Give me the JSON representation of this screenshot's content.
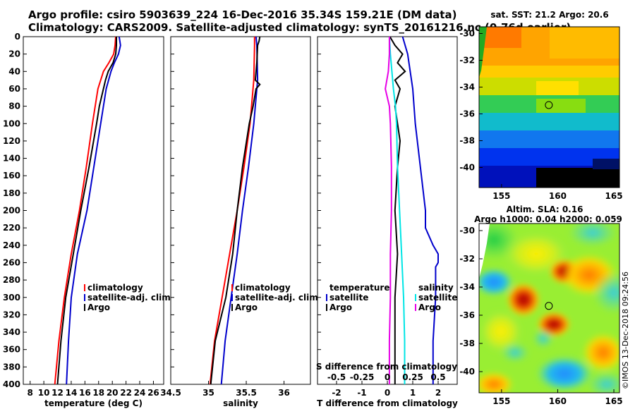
{
  "title_line1": "Argo profile: csiro 5903639_224 16-Dec-2016 35.34S 159.21E (DM data)",
  "title_line2": "Climatology: CARS2009. Satellite-adjusted climatology: synTS_20161216.nc (0.76d earlier)",
  "watermark": "©IMOS 13-Dec-2018 09:24:56",
  "colors": {
    "climatology": "#ff0000",
    "satellite": "#0000cc",
    "argo": "#000000",
    "s_satellite": "#00e5e5",
    "s_climatology": "#e600e6"
  },
  "chart_data": [
    {
      "type": "line",
      "name": "temperature",
      "xlabel": "temperature (deg C)",
      "ylabel": "",
      "xlim": [
        7,
        27.5
      ],
      "ylim": [
        0,
        400
      ],
      "xticks": [
        8,
        10,
        12,
        14,
        16,
        18,
        20,
        22,
        24,
        26
      ],
      "yticks": [
        0,
        20,
        40,
        60,
        80,
        100,
        120,
        140,
        160,
        180,
        200,
        220,
        240,
        260,
        280,
        300,
        320,
        340,
        360,
        380,
        400
      ],
      "legend": [
        "climatology",
        "satellite-adj. clim.",
        "Argo"
      ],
      "series": [
        {
          "name": "climatology",
          "color_key": "climatology",
          "depth": [
            0,
            10,
            20,
            30,
            40,
            60,
            80,
            100,
            150,
            200,
            250,
            300,
            350,
            400
          ],
          "values": [
            20.5,
            20.4,
            20.2,
            19.5,
            18.7,
            17.9,
            17.5,
            17.1,
            16.2,
            15.2,
            14.0,
            13.0,
            12.2,
            11.6
          ]
        },
        {
          "name": "satellite-adj. clim.",
          "color_key": "satellite",
          "depth": [
            0,
            10,
            20,
            30,
            40,
            60,
            80,
            100,
            150,
            200,
            250,
            300,
            350,
            400
          ],
          "values": [
            21.0,
            21.2,
            20.9,
            20.3,
            19.8,
            19.1,
            18.7,
            18.3,
            17.3,
            16.3,
            14.9,
            14.0,
            13.6,
            13.3
          ]
        },
        {
          "name": "Argo",
          "color_key": "argo",
          "depth": [
            0,
            10,
            20,
            30,
            40,
            50,
            60,
            80,
            100,
            150,
            200,
            250,
            300,
            350,
            400
          ],
          "values": [
            20.6,
            20.6,
            20.5,
            20.1,
            19.4,
            19.0,
            18.7,
            18.1,
            17.7,
            16.6,
            15.4,
            14.3,
            13.2,
            12.5,
            12.0
          ]
        }
      ]
    },
    {
      "type": "line",
      "name": "salinity",
      "xlabel": "salinity",
      "ylabel": "",
      "xlim": [
        34.5,
        36.35
      ],
      "ylim": [
        0,
        400
      ],
      "xticks": [
        34.5,
        35,
        35.5,
        36
      ],
      "legend": [
        "climatology",
        "satellite-adj. clim.",
        "Argo"
      ],
      "series": [
        {
          "name": "climatology",
          "color_key": "climatology",
          "depth": [
            0,
            10,
            50,
            100,
            150,
            200,
            250,
            300,
            350,
            400
          ],
          "values": [
            35.61,
            35.61,
            35.6,
            35.55,
            35.47,
            35.38,
            35.28,
            35.18,
            35.08,
            35.02
          ]
        },
        {
          "name": "satellite-adj. clim.",
          "color_key": "satellite",
          "depth": [
            0,
            10,
            50,
            100,
            150,
            200,
            250,
            300,
            350,
            400
          ],
          "values": [
            35.63,
            35.64,
            35.65,
            35.6,
            35.53,
            35.45,
            35.38,
            35.3,
            35.22,
            35.17
          ]
        },
        {
          "name": "Argo",
          "color_key": "argo",
          "depth": [
            0,
            5,
            10,
            30,
            50,
            55,
            60,
            80,
            100,
            150,
            200,
            250,
            300,
            350,
            400
          ],
          "values": [
            35.68,
            35.67,
            35.65,
            35.64,
            35.62,
            35.68,
            35.63,
            35.59,
            35.54,
            35.45,
            35.38,
            35.32,
            35.23,
            35.09,
            35.03
          ]
        }
      ]
    },
    {
      "type": "line",
      "name": "differences",
      "xlabel": "T difference from climatology",
      "xlabel_top": "S difference from climatology",
      "xlim": [
        -2.75,
        2.75
      ],
      "ylim": [
        0,
        400
      ],
      "xticks": [
        -2,
        -1,
        0,
        1,
        2
      ],
      "xticklabels": [
        "-2",
        "-1",
        "0",
        "1",
        "2"
      ],
      "top_ticks": [
        -0.5,
        -0.25,
        0,
        0.25,
        0.5
      ],
      "top_ticklabels": [
        "-0.5",
        "-0.25",
        "0",
        "0.25",
        "0.5"
      ],
      "legend_left_header": "temperature",
      "legend_right_header": "salinity",
      "legend_left": [
        "satellite",
        "Argo"
      ],
      "legend_right": [
        "satellite",
        "Argo"
      ],
      "series": [
        {
          "name": "T satellite",
          "color_key": "satellite",
          "unit": "T",
          "depth": [
            0,
            20,
            60,
            100,
            150,
            200,
            220,
            240,
            250,
            260,
            265,
            300,
            350,
            400
          ],
          "values": [
            0.6,
            0.8,
            1.0,
            1.1,
            1.3,
            1.5,
            1.5,
            1.8,
            2.0,
            2.0,
            1.9,
            1.9,
            1.8,
            1.8
          ]
        },
        {
          "name": "T Argo",
          "color_key": "argo",
          "unit": "T",
          "depth": [
            0,
            10,
            20,
            30,
            40,
            50,
            60,
            80,
            100,
            120,
            150,
            200,
            250,
            300,
            350,
            400
          ],
          "values": [
            0.1,
            0.3,
            0.6,
            0.4,
            0.7,
            0.3,
            0.5,
            0.3,
            0.4,
            0.5,
            0.4,
            0.3,
            0.4,
            0.3,
            0.3,
            0.3
          ]
        },
        {
          "name": "S satellite",
          "color_key": "s_satellite",
          "unit": "S",
          "depth": [
            0,
            20,
            60,
            80,
            100,
            150,
            200,
            250,
            300,
            350,
            400
          ],
          "values": [
            0.02,
            0.03,
            0.06,
            0.08,
            0.09,
            0.1,
            0.12,
            0.14,
            0.16,
            0.17,
            0.17
          ]
        },
        {
          "name": "S Argo",
          "color_key": "s_climatology",
          "unit": "S",
          "depth": [
            0,
            20,
            40,
            60,
            80,
            100,
            150,
            200,
            250,
            300,
            350,
            400
          ],
          "values": [
            0.02,
            0.02,
            0.01,
            -0.02,
            0.02,
            0.03,
            0.04,
            0.04,
            0.03,
            0.03,
            0.02,
            0.02
          ]
        }
      ]
    },
    {
      "type": "heatmap",
      "name": "sst_map",
      "title": "sat. SST: 21.2 Argo: 20.6",
      "xlim": [
        153,
        165.5
      ],
      "ylim": [
        -41.5,
        -29.5
      ],
      "xticks": [
        155,
        160,
        165
      ],
      "yticks": [
        -30,
        -32,
        -34,
        -36,
        -38,
        -40
      ],
      "marker": {
        "lon": 159.21,
        "lat": -35.34
      }
    },
    {
      "type": "heatmap",
      "name": "sla_map",
      "title_line1": "Altim. SLA: 0.16",
      "title_line2": "Argo h1000: 0.04 h2000: 0.059",
      "xlim": [
        153,
        165.5
      ],
      "ylim": [
        -41.5,
        -29.5
      ],
      "xticks": [
        155,
        160,
        165
      ],
      "yticks": [
        -30,
        -32,
        -34,
        -36,
        -38,
        -40
      ],
      "marker": {
        "lon": 159.21,
        "lat": -35.34
      }
    }
  ]
}
